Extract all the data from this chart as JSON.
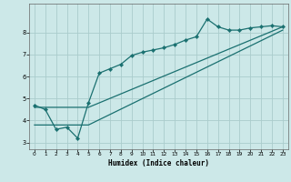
{
  "title": "",
  "xlabel": "Humidex (Indice chaleur)",
  "background_color": "#cce8e8",
  "grid_color": "#aacccc",
  "line_color": "#1a7070",
  "xlim": [
    -0.5,
    23.5
  ],
  "ylim": [
    2.7,
    9.3
  ],
  "xticks": [
    0,
    1,
    2,
    3,
    4,
    5,
    6,
    7,
    8,
    9,
    10,
    11,
    12,
    13,
    14,
    15,
    16,
    17,
    18,
    19,
    20,
    21,
    22,
    23
  ],
  "yticks": [
    3,
    4,
    5,
    6,
    7,
    8
  ],
  "line1_x": [
    0,
    1,
    2,
    3,
    4,
    5,
    6,
    7,
    8,
    9,
    10,
    11,
    12,
    13,
    14,
    15,
    16,
    17,
    18,
    19,
    20,
    21,
    22,
    23
  ],
  "line1_y": [
    4.7,
    4.5,
    3.6,
    3.7,
    3.2,
    4.8,
    6.15,
    6.35,
    6.55,
    6.95,
    7.1,
    7.2,
    7.3,
    7.45,
    7.65,
    7.8,
    8.6,
    8.25,
    8.1,
    8.1,
    8.2,
    8.25,
    8.3,
    8.25
  ],
  "line2_x": [
    0,
    5,
    23
  ],
  "line2_y": [
    4.6,
    4.6,
    8.25
  ],
  "line3_x": [
    0,
    5,
    23
  ],
  "line3_y": [
    3.8,
    3.8,
    8.1
  ]
}
